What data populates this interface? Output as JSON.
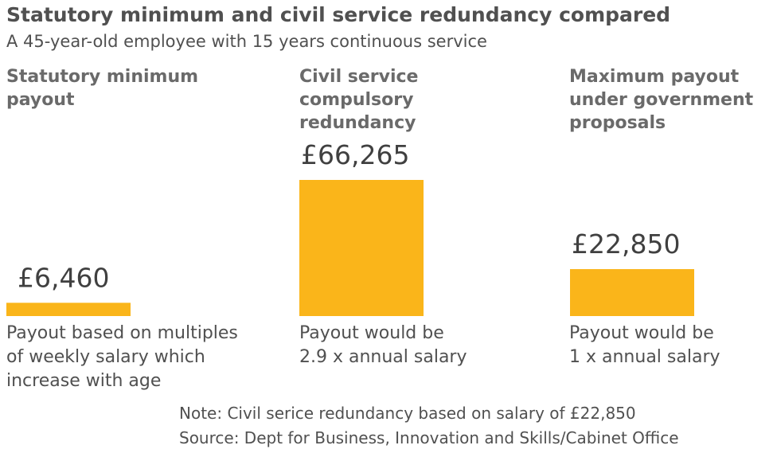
{
  "chart_data": {
    "type": "bar",
    "title": "Statutory minimum and civil service redundancy compared",
    "subtitle": "A 45-year-old employee with 15 years continuous service",
    "categories": [
      "Statutory minimum\npayout",
      "Civil service\ncompulsory\nredundancy",
      "Maximum payout\nunder government\nproposals"
    ],
    "values": [
      6460,
      66265,
      22850
    ],
    "value_labels": [
      "£6,460",
      "£66,265",
      "£22,850"
    ],
    "descriptions": [
      "Payout based on multiples\nof weekly salary which\nincrease with age",
      "Payout would be\n2.9 x annual salary",
      "Payout would be\n1 x annual salary"
    ],
    "ylim": [
      0,
      66265
    ],
    "grid": false,
    "bar_color": "#fab51a",
    "note": "Note: Civil serice redundancy based on salary of £22,850",
    "source": "Source: Dept for Business, Innovation and Skills/Cabinet Office"
  }
}
